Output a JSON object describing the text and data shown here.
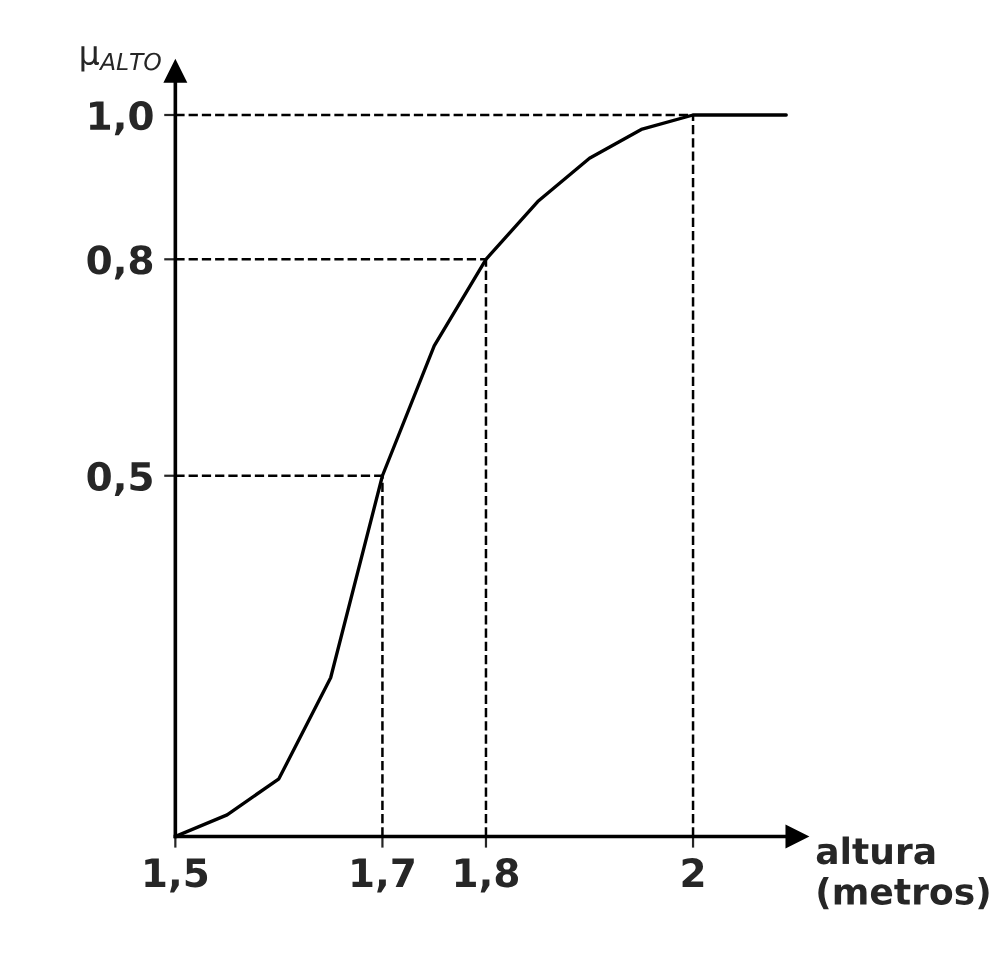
{
  "chart_data": {
    "type": "line",
    "ylabel": "μ$_{ALTO}$",
    "xlabel": "altura\n(metros)",
    "x": [
      1.5,
      1.55,
      1.6,
      1.65,
      1.7,
      1.75,
      1.8,
      1.85,
      1.9,
      1.95,
      2.0,
      2.09
    ],
    "series": [
      {
        "color": "#000000",
        "values": [
          0,
          0.03,
          0.08,
          0.22,
          0.5,
          0.68,
          0.8,
          0.88,
          0.94,
          0.98,
          1.0,
          1.0
        ]
      }
    ],
    "xlim": [
      1.5,
      2.1
    ],
    "ylim": [
      0,
      1.06
    ],
    "xticks": [
      {
        "value": 1.5,
        "label": "1,5"
      },
      {
        "value": 1.7,
        "label": "1,7"
      },
      {
        "value": 1.8,
        "label": "1,8"
      },
      {
        "value": 2,
        "label": "2"
      }
    ],
    "yticks": [
      {
        "value": 0.5,
        "label": "0,5"
      },
      {
        "value": 0.8,
        "label": "0,8"
      },
      {
        "value": 1.0,
        "label": "1,0"
      }
    ],
    "ref_lines": [
      {
        "axis": "x",
        "value": 1.7,
        "line_style": "dashed",
        "color": "#000000"
      },
      {
        "axis": "x",
        "value": 1.8,
        "line_style": "dashed",
        "color": "#000000"
      },
      {
        "axis": "x",
        "value": 2.0,
        "line_style": "dashed",
        "color": "#000000"
      },
      {
        "axis": "y",
        "value": 0.5,
        "line_style": "dashed",
        "color": "#000000"
      },
      {
        "axis": "y",
        "value": 0.8,
        "line_style": "dashed",
        "color": "#000000"
      },
      {
        "axis": "y",
        "value": 1.0,
        "line_style": "dashed",
        "color": "#000000"
      }
    ],
    "grid": false,
    "legend": false,
    "marker": "none",
    "line_style": "solid"
  }
}
